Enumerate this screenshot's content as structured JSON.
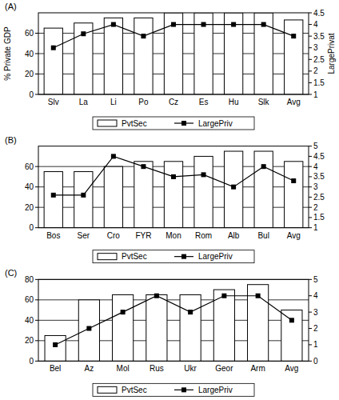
{
  "chart_data": [
    {
      "type": "bar",
      "title": "(A)",
      "categories": [
        "Slv",
        "La",
        "Li",
        "Po",
        "Cz",
        "Es",
        "Hu",
        "Slk",
        "Avg"
      ],
      "series": [
        {
          "name": "PvtSec",
          "type": "bar",
          "color": "#ffffff",
          "values": [
            65,
            70,
            75,
            75,
            80,
            80,
            80,
            80,
            73
          ]
        },
        {
          "name": "LargePriv",
          "type": "line",
          "axis": "y2",
          "color": "#000000",
          "marker": "square",
          "values": [
            3,
            3.6,
            4,
            3.5,
            4,
            4,
            4,
            4,
            3.5
          ]
        }
      ],
      "ylabel": "% Private GDP",
      "y2label": "LargePrivat",
      "ylim": [
        0,
        80
      ],
      "yticks": [
        0,
        20,
        40,
        60
      ],
      "y2lim": [
        1,
        4.5
      ],
      "y2ticks": [
        1,
        1.5,
        2,
        2.5,
        3,
        3.5,
        4,
        4.5
      ],
      "grid": true,
      "legend": "bottom"
    },
    {
      "type": "bar",
      "title": "(B)",
      "categories": [
        "Bos",
        "Ser",
        "Cro",
        "FYR",
        "Mon",
        "Rom",
        "Alb",
        "Bul",
        "Avg"
      ],
      "series": [
        {
          "name": "PvtSec",
          "type": "bar",
          "color": "#ffffff",
          "values": [
            55,
            55,
            60,
            65,
            65,
            70,
            75,
            75,
            65
          ]
        },
        {
          "name": "LargePriv",
          "type": "line",
          "axis": "y2",
          "color": "#000000",
          "marker": "square",
          "values": [
            2.6,
            2.6,
            4.5,
            4,
            3.5,
            3.6,
            3,
            4,
            3.3
          ]
        }
      ],
      "ylim": [
        0,
        80
      ],
      "yticks": [
        0,
        20,
        40,
        60
      ],
      "y2lim": [
        1,
        5
      ],
      "y2ticks": [
        1,
        1.5,
        2,
        2.5,
        3,
        3.5,
        4,
        4.5,
        5
      ],
      "grid": true,
      "legend": "bottom"
    },
    {
      "type": "bar",
      "title": "(C)",
      "categories": [
        "Bel",
        "Az",
        "Mol",
        "Rus",
        "Ukr",
        "Geor",
        "Arm",
        "Avg"
      ],
      "series": [
        {
          "name": "PvtSec",
          "type": "bar",
          "color": "#ffffff",
          "values": [
            25,
            60,
            65,
            65,
            65,
            70,
            75,
            50
          ]
        },
        {
          "name": "LargePriv",
          "type": "line",
          "axis": "y2",
          "color": "#000000",
          "marker": "square",
          "values": [
            1,
            2,
            3,
            4,
            3,
            4,
            4,
            2.5
          ]
        }
      ],
      "ylim": [
        0,
        80
      ],
      "yticks": [
        0,
        20,
        40,
        60,
        80
      ],
      "y2lim": [
        0,
        5
      ],
      "y2ticks": [
        0,
        1,
        2,
        3,
        4,
        5
      ],
      "grid": true,
      "legend": "bottom"
    }
  ]
}
